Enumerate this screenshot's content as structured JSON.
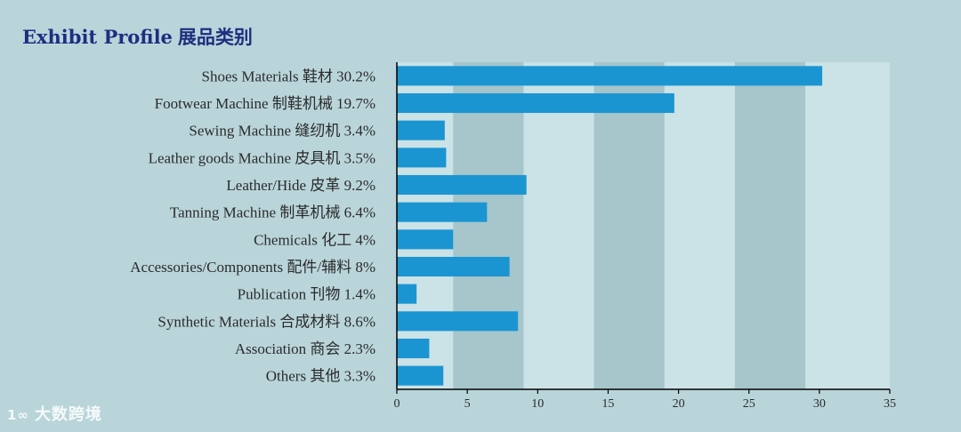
{
  "title": {
    "en": "Exhibit Profile",
    "cn": "展品类别"
  },
  "watermark": {
    "logo_text": "1∞",
    "text": "大数跨境"
  },
  "colors": {
    "background": "#b9d5da",
    "band_light": "#cbe2e6",
    "band_dark": "#a6c6cb",
    "bar": "#1b95d2",
    "title": "#1f2e80",
    "axis": "#000000"
  },
  "chart_data": {
    "type": "bar",
    "orientation": "horizontal",
    "title": "Exhibit Profile 展品类别",
    "categories": [
      "Shoes Materials 鞋材 30.2%",
      "Footwear Machine 制鞋机械 19.7%",
      "Sewing Machine 缝纫机 3.4%",
      "Leather goods Machine 皮具机 3.5%",
      "Leather/Hide 皮革 9.2%",
      "Tanning Machine 制革机械 6.4%",
      "Chemicals 化工 4%",
      "Accessories/Components 配件/辅料 8%",
      "Publication 刊物 1.4%",
      "Synthetic Materials 合成材料 8.6%",
      "Association 商会 2.3%",
      "Others 其他 3.3%"
    ],
    "values": [
      30.2,
      19.7,
      3.4,
      3.5,
      9.2,
      6.4,
      4,
      8,
      1.4,
      8.6,
      2.3,
      3.3
    ],
    "xlim": [
      0,
      35
    ],
    "xticks": [
      0,
      5,
      10,
      15,
      20,
      25,
      30,
      35
    ],
    "xlabel": "",
    "ylabel": "",
    "grid": "alternating vertical bands",
    "legend": "none"
  }
}
